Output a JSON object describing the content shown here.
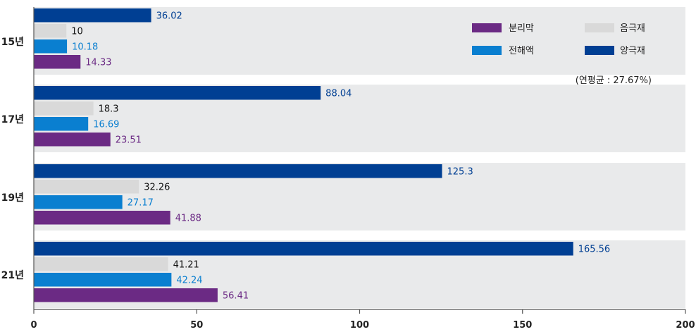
{
  "chart_data": {
    "type": "bar",
    "orientation": "horizontal",
    "categories": [
      "15년",
      "17년",
      "19년",
      "21년"
    ],
    "series": [
      {
        "name": "양극재",
        "color": "#003f93",
        "label_color": "#003f93",
        "values": [
          36.02,
          88.04,
          125.3,
          165.56
        ]
      },
      {
        "name": "음극재",
        "color": "#d9d9d9",
        "label_color": "#111111",
        "values": [
          10,
          18.3,
          32.26,
          41.21
        ]
      },
      {
        "name": "전해액",
        "color": "#0a7fd0",
        "label_color": "#0a7fd0",
        "values": [
          10.18,
          16.69,
          27.17,
          42.24
        ]
      },
      {
        "name": "분리막",
        "color": "#6b2a84",
        "label_color": "#6b2a84",
        "values": [
          14.33,
          23.51,
          41.88,
          56.41
        ]
      }
    ],
    "value_labels": [
      [
        "36.02",
        "10",
        "10.18",
        "14.33"
      ],
      [
        "88.04",
        "18.3",
        "16.69",
        "23.51"
      ],
      [
        "125.3",
        "32.26",
        "27.17",
        "41.88"
      ],
      [
        "165.56",
        "41.21",
        "42.24",
        "56.41"
      ]
    ],
    "xlim": [
      0,
      200
    ],
    "xticks": [
      0,
      50,
      100,
      150,
      200
    ],
    "xtick_labels": [
      "0",
      "50",
      "100",
      "150",
      "200"
    ],
    "grid": false,
    "legend": {
      "placement": "top-right",
      "items": [
        {
          "name": "분리막",
          "color": "#6b2a84"
        },
        {
          "name": "음극재",
          "color": "#d9d9d9"
        },
        {
          "name": "전해액",
          "color": "#0a7fd0"
        },
        {
          "name": "양극재",
          "color": "#003f93"
        }
      ]
    },
    "annotation": "(연평균 : 27.67%)",
    "band_color": "#e9eaeb"
  }
}
